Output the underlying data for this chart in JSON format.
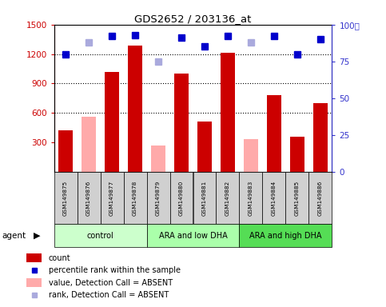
{
  "title": "GDS2652 / 203136_at",
  "samples": [
    "GSM149875",
    "GSM149876",
    "GSM149877",
    "GSM149878",
    "GSM149879",
    "GSM149880",
    "GSM149881",
    "GSM149882",
    "GSM149883",
    "GSM149884",
    "GSM149885",
    "GSM149886"
  ],
  "groups": [
    {
      "label": "control",
      "start": 0,
      "end": 4,
      "color": "#ccffcc"
    },
    {
      "label": "ARA and low DHA",
      "start": 4,
      "end": 8,
      "color": "#aaffaa"
    },
    {
      "label": "ARA and high DHA",
      "start": 8,
      "end": 12,
      "color": "#55dd55"
    }
  ],
  "bar_values": [
    420,
    560,
    1020,
    1290,
    270,
    1000,
    510,
    1210,
    330,
    780,
    360,
    700
  ],
  "bar_absent": [
    false,
    true,
    false,
    false,
    true,
    false,
    false,
    false,
    true,
    false,
    false,
    false
  ],
  "percentile_values": [
    80,
    88,
    92,
    93,
    75,
    91,
    85,
    92,
    88,
    92,
    80,
    90
  ],
  "percentile_absent": [
    false,
    true,
    false,
    false,
    true,
    false,
    false,
    false,
    true,
    false,
    false,
    false
  ],
  "ylim_left": [
    0,
    1500
  ],
  "ylim_right": [
    0,
    100
  ],
  "yticks_left": [
    300,
    600,
    900,
    1200,
    1500
  ],
  "yticks_right": [
    0,
    25,
    50,
    75,
    100
  ],
  "ylabel_left_color": "#cc0000",
  "ylabel_right_color": "#3333cc",
  "bar_color_present": "#cc0000",
  "bar_color_absent": "#ffaaaa",
  "dot_color_present": "#0000cc",
  "dot_color_absent": "#aaaadd",
  "plot_bg_color": "#ffffff",
  "sample_box_color": "#d0d0d0",
  "legend_items": [
    {
      "type": "patch",
      "color": "#cc0000",
      "label": "count"
    },
    {
      "type": "marker",
      "color": "#0000cc",
      "label": "percentile rank within the sample"
    },
    {
      "type": "patch",
      "color": "#ffaaaa",
      "label": "value, Detection Call = ABSENT"
    },
    {
      "type": "marker",
      "color": "#aaaadd",
      "label": "rank, Detection Call = ABSENT"
    }
  ]
}
